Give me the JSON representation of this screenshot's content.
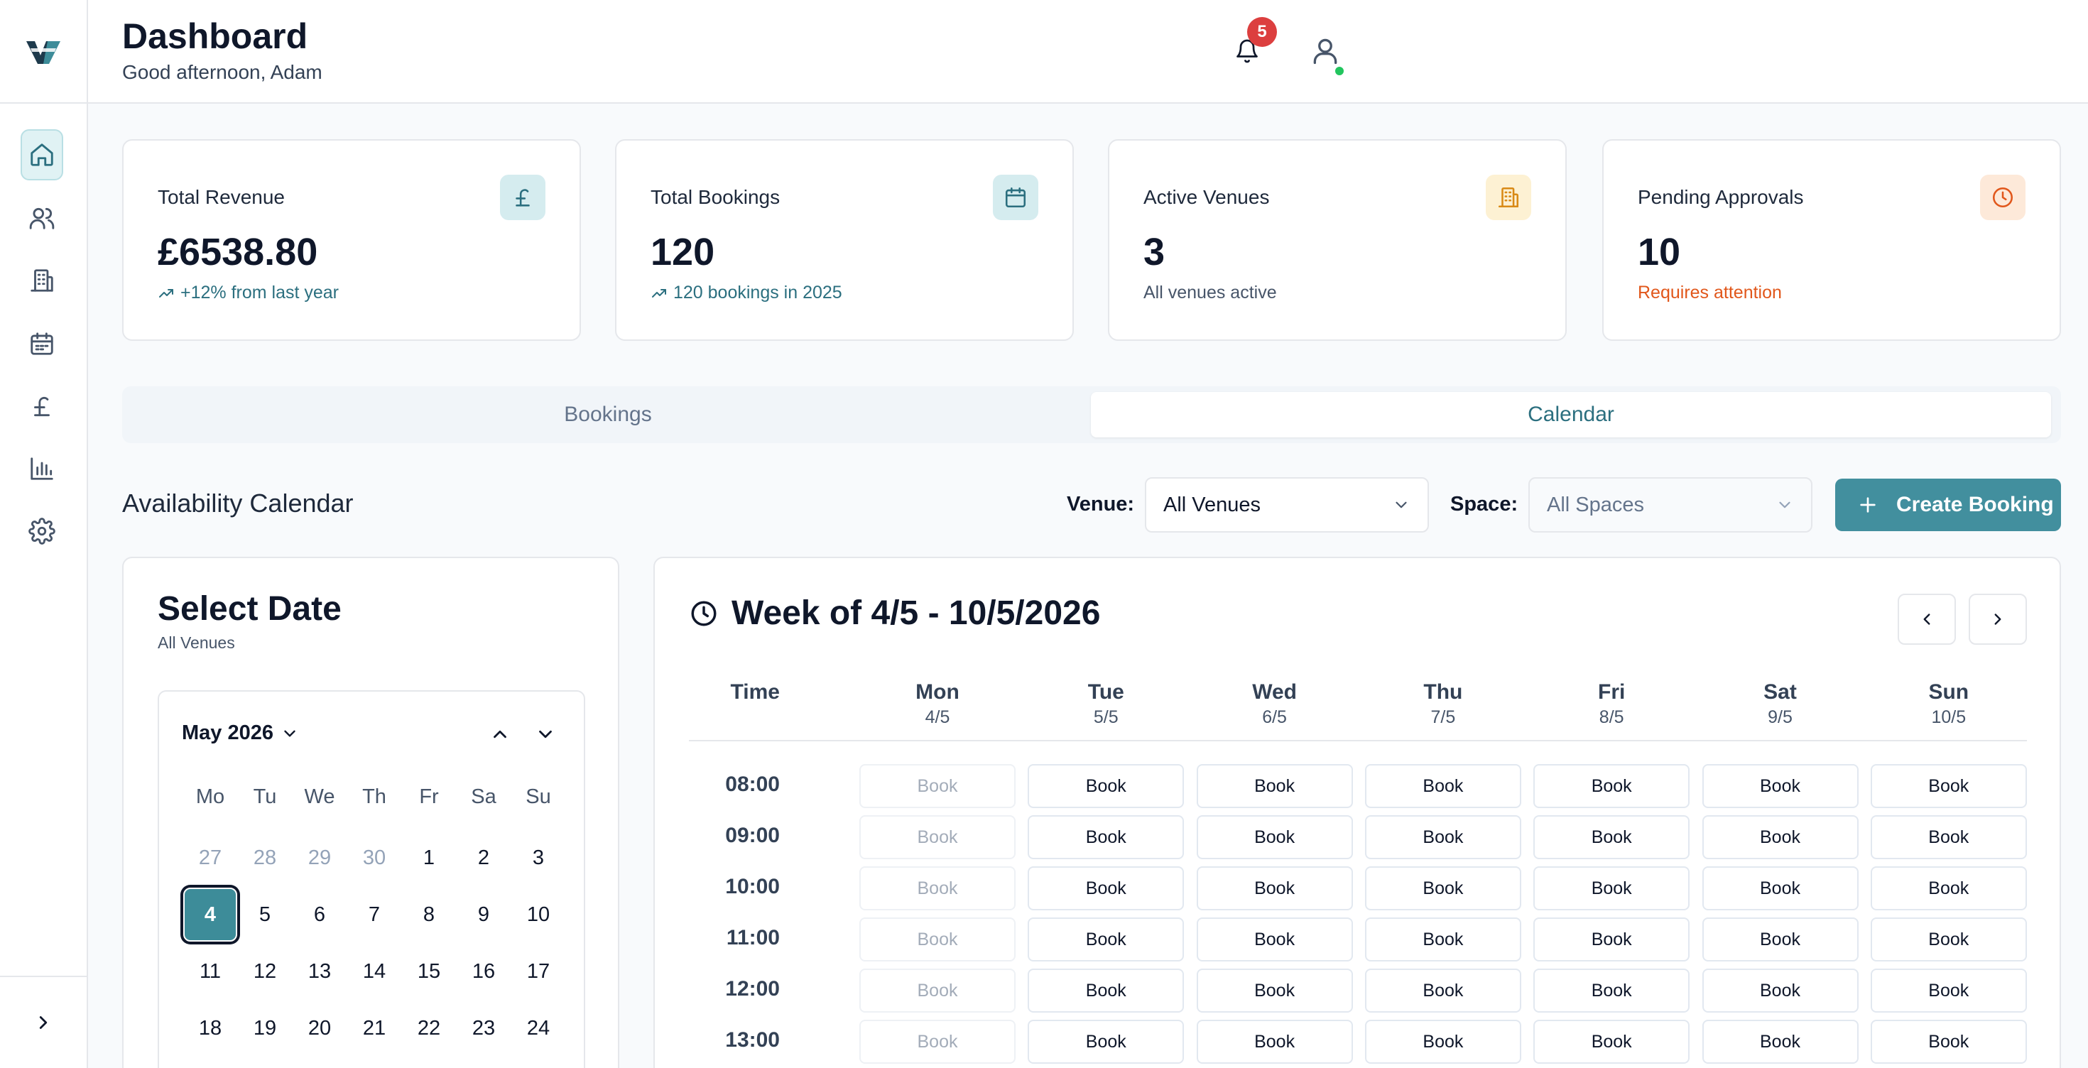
{
  "header": {
    "title": "Dashboard",
    "greeting": "Good afternoon, Adam",
    "notification_count": "5"
  },
  "sidebar": {
    "items": [
      {
        "name": "home",
        "icon": "home-icon",
        "active": true
      },
      {
        "name": "users",
        "icon": "users-icon"
      },
      {
        "name": "venues",
        "icon": "building-icon"
      },
      {
        "name": "calendar",
        "icon": "calendar-icon"
      },
      {
        "name": "finance",
        "icon": "pound-icon"
      },
      {
        "name": "reports",
        "icon": "bar-chart-icon"
      },
      {
        "name": "settings",
        "icon": "gear-icon"
      }
    ],
    "expand_icon": "chevron-right-icon"
  },
  "stats": [
    {
      "label": "Total Revenue",
      "value": "£6538.80",
      "note": "+12% from last year",
      "note_color": "#2b6f7f",
      "icon": "pound-icon",
      "icon_bg": "#d5ecef",
      "icon_color": "#2b6f7f"
    },
    {
      "label": "Total Bookings",
      "value": "120",
      "note": "120 bookings in 2025",
      "note_color": "#2b6f7f",
      "icon": "calendar-icon",
      "icon_bg": "#d5ecef",
      "icon_color": "#2b6f7f"
    },
    {
      "label": "Active Venues",
      "value": "3",
      "note": "All venues active",
      "note_color": "#475569",
      "icon": "building-icon",
      "icon_bg": "#fdf1d3",
      "icon_color": "#d98a16"
    },
    {
      "label": "Pending Approvals",
      "value": "10",
      "note": "Requires attention",
      "note_color": "#e1571b",
      "icon": "clock-icon",
      "icon_bg": "#fde9d9",
      "icon_color": "#e1571b"
    }
  ],
  "tabs": [
    {
      "label": "Bookings",
      "active": false
    },
    {
      "label": "Calendar",
      "active": true
    }
  ],
  "calendar_section": {
    "title": "Availability Calendar",
    "venue_label": "Venue:",
    "venue_value": "All Venues",
    "space_label": "Space:",
    "space_value": "All Spaces",
    "create_label": "Create Booking"
  },
  "date_picker": {
    "title": "Select Date",
    "subtitle": "All Venues",
    "month": "May 2026",
    "weekdays": [
      "Mo",
      "Tu",
      "We",
      "Th",
      "Fr",
      "Sa",
      "Su"
    ],
    "weeks": [
      [
        {
          "d": "27",
          "m": true
        },
        {
          "d": "28",
          "m": true
        },
        {
          "d": "29",
          "m": true
        },
        {
          "d": "30",
          "m": true
        },
        {
          "d": "1"
        },
        {
          "d": "2"
        },
        {
          "d": "3"
        }
      ],
      [
        {
          "d": "4",
          "s": true
        },
        {
          "d": "5"
        },
        {
          "d": "6"
        },
        {
          "d": "7"
        },
        {
          "d": "8"
        },
        {
          "d": "9"
        },
        {
          "d": "10"
        }
      ],
      [
        {
          "d": "11"
        },
        {
          "d": "12"
        },
        {
          "d": "13"
        },
        {
          "d": "14"
        },
        {
          "d": "15"
        },
        {
          "d": "16"
        },
        {
          "d": "17"
        }
      ],
      [
        {
          "d": "18"
        },
        {
          "d": "19"
        },
        {
          "d": "20"
        },
        {
          "d": "21"
        },
        {
          "d": "22"
        },
        {
          "d": "23"
        },
        {
          "d": "24"
        }
      ]
    ]
  },
  "week_view": {
    "title": "Week of 4/5 - 10/5/2026",
    "time_header": "Time",
    "days": [
      {
        "name": "Mon",
        "date": "4/5"
      },
      {
        "name": "Tue",
        "date": "5/5"
      },
      {
        "name": "Wed",
        "date": "6/5"
      },
      {
        "name": "Thu",
        "date": "7/5"
      },
      {
        "name": "Fri",
        "date": "8/5"
      },
      {
        "name": "Sat",
        "date": "9/5"
      },
      {
        "name": "Sun",
        "date": "10/5"
      }
    ],
    "times": [
      "08:00",
      "09:00",
      "10:00",
      "11:00",
      "12:00",
      "13:00"
    ],
    "book_label": "Book",
    "disabled_columns": [
      0
    ]
  }
}
